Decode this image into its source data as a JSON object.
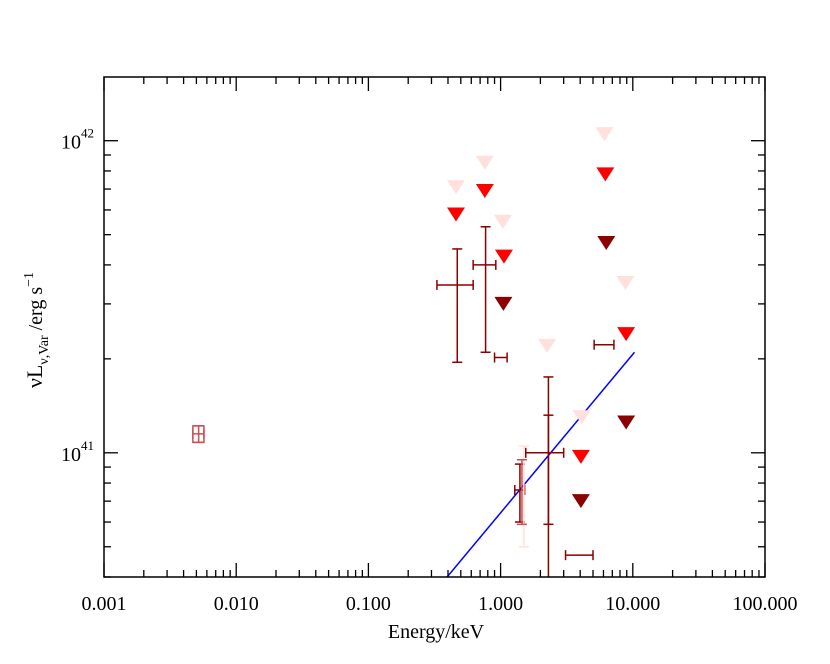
{
  "chart_data": {
    "type": "scatter",
    "xscale": "log",
    "yscale": "log",
    "xlim": [
      0.001,
      100.0
    ],
    "ylim": [
      4e+40,
      1.6e+42
    ],
    "xlabel": "Energy/keV",
    "ylabel": {
      "main": "νL",
      "sub": "ν,Var",
      "unit": " /erg s",
      "sup": "−1"
    },
    "xticks": [
      {
        "value": 0.001,
        "label": "0.001"
      },
      {
        "value": 0.01,
        "label": "0.010"
      },
      {
        "value": 0.1,
        "label": "0.100"
      },
      {
        "value": 1.0,
        "label": "1.000"
      },
      {
        "value": 10.0,
        "label": "10.000"
      },
      {
        "value": 100.0,
        "label": "100.000"
      }
    ],
    "yticks": [
      {
        "value": 1e+41,
        "base": "10",
        "exp": "41"
      },
      {
        "value": 1e+42,
        "base": "10",
        "exp": "42"
      }
    ],
    "colors": {
      "dark": "#8b0000",
      "red": "#ff0000",
      "pink": "#ffe0dc",
      "uv": "#cd5050",
      "fit": "#0000ff",
      "axis": "#000000"
    },
    "fit_line": {
      "x": [
        0.32,
        10.3
      ],
      "y": [
        3.6e+40,
        2.1e+41
      ],
      "color": "fit"
    },
    "uv_point": {
      "x": 0.0052,
      "y": 1.15e+41,
      "xerr": [
        0.0047,
        0.0057
      ],
      "yerr": [
        1.08e+41,
        1.22e+41
      ],
      "color": "uv"
    },
    "error_points": [
      {
        "series": "dark",
        "x": 0.47,
        "y": 3.45e+41,
        "xerr": [
          0.33,
          0.62
        ],
        "yerr": [
          1.95e+41,
          4.5e+41
        ]
      },
      {
        "series": "dark",
        "x": 0.77,
        "y": 4e+41,
        "xerr": [
          0.62,
          0.92
        ],
        "yerr": [
          2.1e+41,
          5.3e+41
        ]
      },
      {
        "series": "dark",
        "x": 2.3,
        "y": 1e+41,
        "xerr": [
          1.55,
          3.0
        ],
        "yerr": [
          3.9e+40,
          1.75e+41
        ]
      },
      {
        "series": "dark",
        "x": 1.4,
        "y": 7.6e+40,
        "xerr": [
          1.28,
          1.52
        ],
        "yerr": [
          6e+40,
          9.2e+40
        ]
      },
      {
        "series": "dark",
        "x": 2.3,
        "y": 1e+41,
        "xerr": [
          2.3,
          2.3
        ],
        "yerr": [
          5.9e+40,
          1.32e+41
        ]
      },
      {
        "series": "pink",
        "x": 1.5,
        "y": 8.6e+40,
        "xerr": [
          1.5,
          1.5
        ],
        "yerr": [
          5e+40,
          1.05e+41
        ]
      },
      {
        "series": "uv",
        "x": 1.45,
        "y": 7.9e+40,
        "xerr": [
          1.45,
          1.45
        ],
        "yerr": [
          5.9e+40,
          9.5e+40
        ]
      }
    ],
    "x_bars": [
      {
        "series": "dark",
        "y": 2.02e+41,
        "xerr": [
          0.9,
          1.12
        ]
      },
      {
        "series": "dark",
        "y": 2.22e+41,
        "xerr": [
          5.1,
          7.2
        ]
      },
      {
        "series": "dark",
        "y": 4.7e+40,
        "xerr": [
          3.1,
          5.0
        ]
      }
    ],
    "upper_limits": [
      {
        "series": "pink",
        "x": 0.46,
        "y": 7.1e+41
      },
      {
        "series": "red",
        "x": 0.46,
        "y": 5.8e+41
      },
      {
        "series": "pink",
        "x": 0.76,
        "y": 8.5e+41
      },
      {
        "series": "red",
        "x": 0.76,
        "y": 6.9e+41
      },
      {
        "series": "pink",
        "x": 1.04,
        "y": 5.5e+41
      },
      {
        "series": "red",
        "x": 1.06,
        "y": 4.25e+41
      },
      {
        "series": "dark",
        "x": 1.05,
        "y": 3e+41
      },
      {
        "series": "pink",
        "x": 2.25,
        "y": 2.2e+41
      },
      {
        "series": "pink",
        "x": 4.1,
        "y": 1.3e+41
      },
      {
        "series": "red",
        "x": 4.05,
        "y": 9.7e+40
      },
      {
        "series": "dark",
        "x": 4.05,
        "y": 7e+40
      },
      {
        "series": "pink",
        "x": 6.1,
        "y": 1.05e+42
      },
      {
        "series": "red",
        "x": 6.2,
        "y": 7.8e+41
      },
      {
        "series": "dark",
        "x": 6.3,
        "y": 4.7e+41
      },
      {
        "series": "pink",
        "x": 8.8,
        "y": 3.5e+41
      },
      {
        "series": "red",
        "x": 8.9,
        "y": 2.4e+41
      },
      {
        "series": "dark",
        "x": 8.9,
        "y": 1.25e+41
      }
    ]
  }
}
